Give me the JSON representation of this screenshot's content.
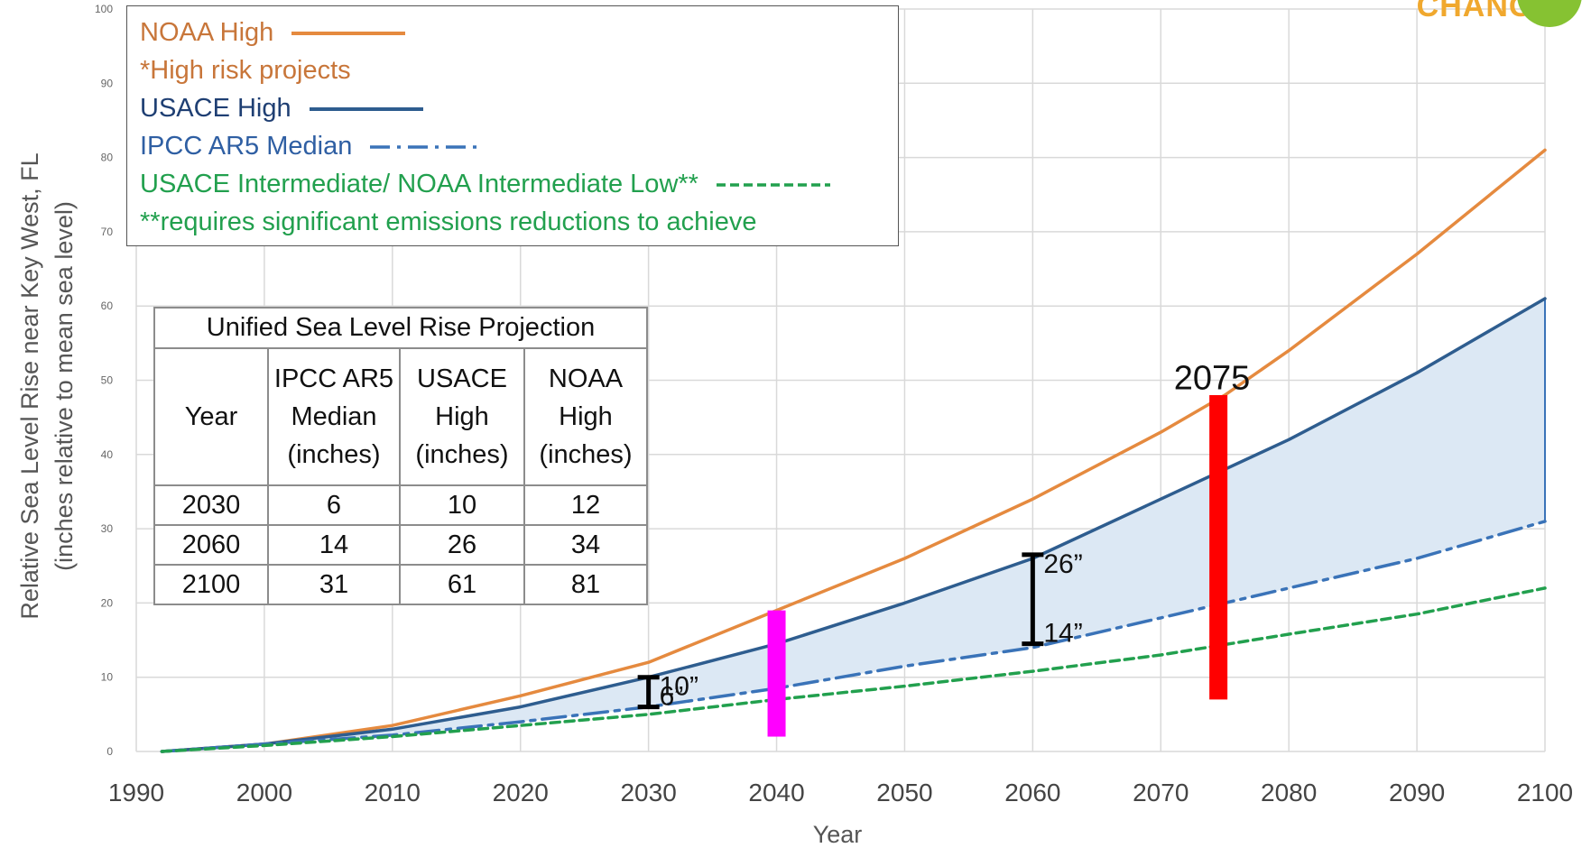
{
  "brand": {
    "text": "CHANGE",
    "color": "#f0a82e",
    "leaf_color": "#86c232"
  },
  "chart_data": {
    "type": "line",
    "title": "",
    "xlabel": "Year",
    "ylabel_line1": "Relative Sea Level Rise near Key West, FL",
    "ylabel_line2": "(inches relative to mean sea level)",
    "xlim": [
      1990,
      2100
    ],
    "ylim": [
      0,
      100
    ],
    "x_ticks": [
      1990,
      2000,
      2010,
      2020,
      2030,
      2040,
      2050,
      2060,
      2070,
      2080,
      2090,
      2100
    ],
    "y_ticks": [
      0,
      10,
      20,
      30,
      40,
      50,
      60,
      70,
      80,
      90,
      100
    ],
    "grid": true,
    "colors": {
      "noaa_high": "#e58a3f",
      "usace_high": "#2e5d8f",
      "ipcc": "#3a73b8",
      "usace_int": "#22a04e",
      "band_fill": "#dce8f4",
      "magenta_bar": "#ff00ff",
      "red_bar": "#ff0000",
      "bracket": "#000000"
    },
    "series": [
      {
        "name": "NOAA High",
        "key": "noaa_high",
        "style": "solid",
        "x": [
          1992,
          2000,
          2010,
          2020,
          2030,
          2040,
          2050,
          2060,
          2070,
          2075,
          2080,
          2090,
          2100
        ],
        "y": [
          0,
          1,
          3.5,
          7.5,
          12,
          19,
          26,
          34,
          43,
          48,
          54,
          67,
          81
        ]
      },
      {
        "name": "USACE High",
        "key": "usace_high",
        "style": "solid",
        "x": [
          1992,
          2000,
          2010,
          2020,
          2030,
          2040,
          2050,
          2060,
          2070,
          2080,
          2090,
          2100
        ],
        "y": [
          0,
          1,
          3,
          6,
          10,
          14.5,
          20,
          26,
          34,
          42,
          51,
          61
        ]
      },
      {
        "name": "IPCC AR5 Median",
        "key": "ipcc",
        "style": "dashdot",
        "x": [
          1992,
          2000,
          2010,
          2020,
          2030,
          2040,
          2050,
          2060,
          2070,
          2080,
          2090,
          2100
        ],
        "y": [
          0,
          1,
          2.2,
          4,
          6,
          8.5,
          11.5,
          14,
          18,
          22,
          26,
          31
        ]
      },
      {
        "name": "USACE Intermediate/ NOAA Intermediate Low**",
        "key": "usace_int",
        "style": "dashed",
        "x": [
          1992,
          2000,
          2010,
          2020,
          2030,
          2040,
          2050,
          2060,
          2070,
          2080,
          2090,
          2100
        ],
        "y": [
          0,
          0.8,
          2,
          3.5,
          5,
          7,
          8.8,
          10.8,
          13,
          15.8,
          18.5,
          22
        ]
      }
    ],
    "vertical_bars": [
      {
        "key": "magenta_bar",
        "x": 2040,
        "y_from": 2,
        "y_to": 19
      },
      {
        "key": "red_bar",
        "x": 2074.5,
        "y_from": 7,
        "y_to": 48
      }
    ],
    "brackets": [
      {
        "x": 2030,
        "y_low": 6,
        "y_high": 10,
        "label_high": "10”",
        "label_low": "6”"
      },
      {
        "x": 2060,
        "y_low": 14.5,
        "y_high": 26.5,
        "label_high": "26”",
        "label_low": "14”"
      }
    ],
    "annotations": [
      {
        "text": "2075",
        "x": 2074,
        "y": 50
      }
    ]
  },
  "legend": {
    "items": [
      {
        "label": "NOAA High",
        "color": "#c8763a",
        "sample": "solid",
        "sample_color": "#e58a3f"
      },
      {
        "label": "*High risk projects",
        "color": "#c8763a",
        "sample": "none"
      },
      {
        "label": "USACE High",
        "color": "#1f3f73",
        "sample": "solid",
        "sample_color": "#2e5d8f"
      },
      {
        "label": "IPCC AR5 Median",
        "color": "#2f5fa3",
        "sample": "dashdot",
        "sample_color": "#3a73b8"
      },
      {
        "label": "USACE Intermediate/ NOAA Intermediate Low**",
        "color": "#22a04e",
        "sample": "dashed",
        "sample_color": "#22a04e"
      },
      {
        "label": "**requires significant emissions reductions to achieve",
        "color": "#22a04e",
        "sample": "none"
      }
    ]
  },
  "table": {
    "title": "Unified Sea Level Rise Projection",
    "headers": [
      "Year",
      "IPCC AR5 Median (inches)",
      "USACE High (inches)",
      "NOAA High (inches)"
    ],
    "header_lines": [
      [
        "Year"
      ],
      [
        "IPCC AR5",
        "Median",
        "(inches)"
      ],
      [
        "USACE",
        "High",
        "(inches)"
      ],
      [
        "NOAA",
        "High",
        "(inches)"
      ]
    ],
    "rows": [
      [
        "2030",
        "6",
        "10",
        "12"
      ],
      [
        "2060",
        "14",
        "26",
        "34"
      ],
      [
        "2100",
        "31",
        "61",
        "81"
      ]
    ]
  }
}
